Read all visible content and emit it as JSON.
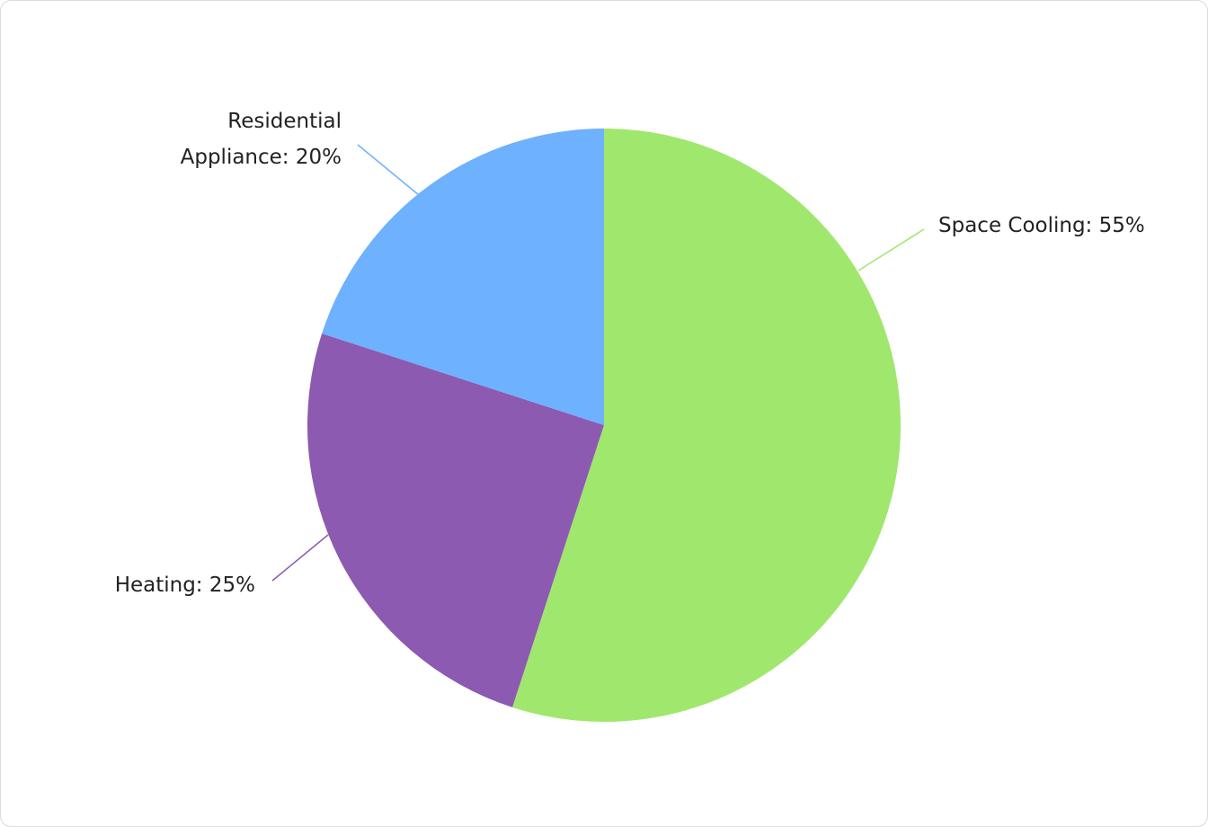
{
  "chart_data": {
    "type": "pie",
    "title": "",
    "series": [
      {
        "name": "Space Cooling",
        "value": 55,
        "color": "#a0e76e",
        "label": "Space Cooling: 55%",
        "label_lines": [
          "Space Cooling: 55%"
        ]
      },
      {
        "name": "Heating",
        "value": 25,
        "color": "#8c5ab0",
        "label": "Heating: 25%",
        "label_lines": [
          "Heating: 25%"
        ]
      },
      {
        "name": "Residential Appliance",
        "value": 20,
        "color": "#6eb1ff",
        "label": "Residential Appliance: 20%",
        "label_lines": [
          "Residential",
          "Appliance: 20%"
        ]
      }
    ],
    "start_angle_deg": 0,
    "direction": "clockwise",
    "legend": "none"
  }
}
